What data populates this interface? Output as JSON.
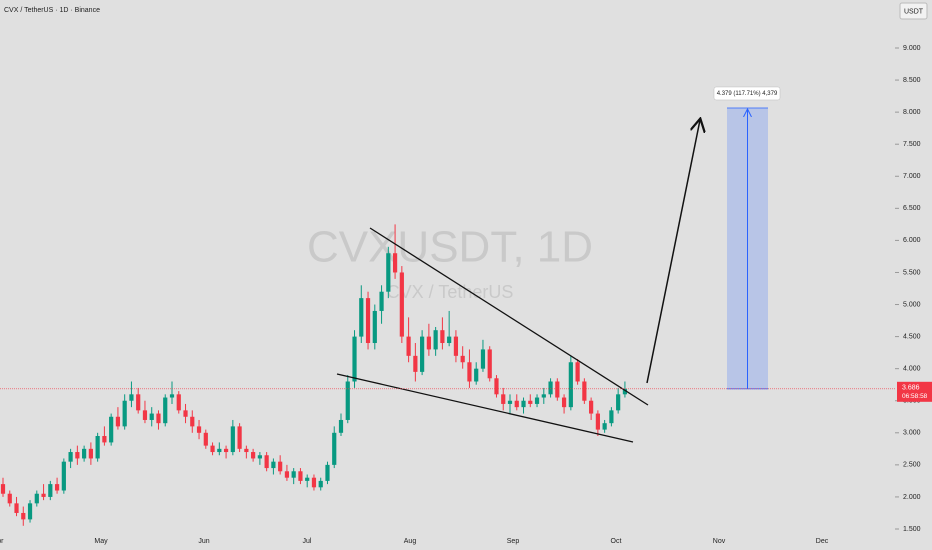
{
  "chart_data": {
    "type": "candlestick",
    "title": "CVX / TetherUS · 1D · Binance",
    "currency": "USDT",
    "watermark": "CVXUSDT, 1D",
    "watermark_sub": "CVX / TetherUS",
    "up_color": "#089981",
    "down_color": "#f23645",
    "ylim": [
      1.5,
      9
    ],
    "yticks": [
      {
        "value": 9,
        "label": "9.000"
      },
      {
        "value": 8.5,
        "label": "8.500"
      },
      {
        "value": 8,
        "label": "8.000"
      },
      {
        "value": 7.5,
        "label": "7.500"
      },
      {
        "value": 7,
        "label": "7.000"
      },
      {
        "value": 6.5,
        "label": "6.500"
      },
      {
        "value": 6,
        "label": "6.000"
      },
      {
        "value": 5.5,
        "label": "5.500"
      },
      {
        "value": 5,
        "label": "5.000"
      },
      {
        "value": 4.5,
        "label": "4.500"
      },
      {
        "value": 4,
        "label": "4.000"
      },
      {
        "value": 3.5,
        "label": "3.500"
      },
      {
        "value": 3,
        "label": "3.000"
      },
      {
        "value": 2.5,
        "label": "2.500"
      },
      {
        "value": 2,
        "label": "2.000"
      },
      {
        "value": 1.5,
        "label": "1.500"
      }
    ],
    "months": [
      "Apr",
      "May",
      "Jun",
      "Jul",
      "Aug",
      "Sep",
      "Oct",
      "Nov",
      "Dec"
    ],
    "last_price": 3.686,
    "countdown": "06:58:58",
    "measure": {
      "change": 4.379,
      "label": "4.379 (117.71%) 4,379"
    },
    "ohlc": [
      [
        2.2,
        2.3,
        2.0,
        2.05
      ],
      [
        2.05,
        2.1,
        1.85,
        1.9
      ],
      [
        1.9,
        2.0,
        1.7,
        1.75
      ],
      [
        1.75,
        1.85,
        1.55,
        1.65
      ],
      [
        1.65,
        1.95,
        1.6,
        1.9
      ],
      [
        1.9,
        2.1,
        1.85,
        2.05
      ],
      [
        2.05,
        2.2,
        1.95,
        2.0
      ],
      [
        2.0,
        2.25,
        1.95,
        2.2
      ],
      [
        2.2,
        2.3,
        2.05,
        2.1
      ],
      [
        2.1,
        2.6,
        2.05,
        2.55
      ],
      [
        2.55,
        2.75,
        2.45,
        2.7
      ],
      [
        2.7,
        2.8,
        2.5,
        2.6
      ],
      [
        2.6,
        2.8,
        2.55,
        2.75
      ],
      [
        2.75,
        2.85,
        2.5,
        2.6
      ],
      [
        2.6,
        3.0,
        2.55,
        2.95
      ],
      [
        2.95,
        3.1,
        2.8,
        2.85
      ],
      [
        2.85,
        3.3,
        2.8,
        3.25
      ],
      [
        3.25,
        3.4,
        3.05,
        3.1
      ],
      [
        3.1,
        3.6,
        3.05,
        3.5
      ],
      [
        3.5,
        3.8,
        3.4,
        3.6
      ],
      [
        3.6,
        3.7,
        3.3,
        3.35
      ],
      [
        3.35,
        3.5,
        3.15,
        3.2
      ],
      [
        3.2,
        3.4,
        3.1,
        3.3
      ],
      [
        3.3,
        3.35,
        3.05,
        3.15
      ],
      [
        3.15,
        3.6,
        3.1,
        3.55
      ],
      [
        3.55,
        3.8,
        3.45,
        3.6
      ],
      [
        3.6,
        3.65,
        3.3,
        3.35
      ],
      [
        3.35,
        3.45,
        3.15,
        3.25
      ],
      [
        3.25,
        3.35,
        3.0,
        3.1
      ],
      [
        3.1,
        3.2,
        2.9,
        3.0
      ],
      [
        3.0,
        3.05,
        2.75,
        2.8
      ],
      [
        2.8,
        2.85,
        2.65,
        2.7
      ],
      [
        2.7,
        2.85,
        2.65,
        2.75
      ],
      [
        2.75,
        2.8,
        2.6,
        2.7
      ],
      [
        2.7,
        3.2,
        2.65,
        3.1
      ],
      [
        3.1,
        3.15,
        2.7,
        2.75
      ],
      [
        2.75,
        2.8,
        2.6,
        2.7
      ],
      [
        2.7,
        2.75,
        2.55,
        2.6
      ],
      [
        2.6,
        2.7,
        2.5,
        2.65
      ],
      [
        2.65,
        2.7,
        2.4,
        2.45
      ],
      [
        2.45,
        2.6,
        2.35,
        2.55
      ],
      [
        2.55,
        2.65,
        2.35,
        2.4
      ],
      [
        2.4,
        2.5,
        2.25,
        2.3
      ],
      [
        2.3,
        2.45,
        2.2,
        2.4
      ],
      [
        2.4,
        2.45,
        2.2,
        2.25
      ],
      [
        2.25,
        2.35,
        2.15,
        2.3
      ],
      [
        2.3,
        2.35,
        2.1,
        2.15
      ],
      [
        2.15,
        2.3,
        2.1,
        2.25
      ],
      [
        2.25,
        2.55,
        2.2,
        2.5
      ],
      [
        2.5,
        3.1,
        2.45,
        3.0
      ],
      [
        3.0,
        3.3,
        2.95,
        3.2
      ],
      [
        3.2,
        3.9,
        3.15,
        3.8
      ],
      [
        3.8,
        4.6,
        3.7,
        4.5
      ],
      [
        4.5,
        5.3,
        4.4,
        5.1
      ],
      [
        5.1,
        5.2,
        4.3,
        4.4
      ],
      [
        4.4,
        5.0,
        4.3,
        4.9
      ],
      [
        4.9,
        5.3,
        4.7,
        5.2
      ],
      [
        5.2,
        5.9,
        5.1,
        5.8
      ],
      [
        5.8,
        6.25,
        5.4,
        5.5
      ],
      [
        5.5,
        5.6,
        4.4,
        4.5
      ],
      [
        4.5,
        4.8,
        4.1,
        4.2
      ],
      [
        4.2,
        4.4,
        3.8,
        3.95
      ],
      [
        3.95,
        4.6,
        3.9,
        4.5
      ],
      [
        4.5,
        4.7,
        4.2,
        4.3
      ],
      [
        4.3,
        4.65,
        4.2,
        4.6
      ],
      [
        4.6,
        4.8,
        4.3,
        4.4
      ],
      [
        4.4,
        4.9,
        4.35,
        4.5
      ],
      [
        4.5,
        4.6,
        4.1,
        4.2
      ],
      [
        4.2,
        4.35,
        4.0,
        4.1
      ],
      [
        4.1,
        4.3,
        3.7,
        3.8
      ],
      [
        3.8,
        4.1,
        3.75,
        4.0
      ],
      [
        4.0,
        4.45,
        3.95,
        4.3
      ],
      [
        4.3,
        4.35,
        3.8,
        3.85
      ],
      [
        3.85,
        3.9,
        3.55,
        3.6
      ],
      [
        3.6,
        3.7,
        3.35,
        3.45
      ],
      [
        3.45,
        3.6,
        3.3,
        3.5
      ],
      [
        3.5,
        3.6,
        3.35,
        3.4
      ],
      [
        3.4,
        3.55,
        3.3,
        3.5
      ],
      [
        3.5,
        3.6,
        3.4,
        3.45
      ],
      [
        3.45,
        3.6,
        3.4,
        3.55
      ],
      [
        3.55,
        3.7,
        3.45,
        3.6
      ],
      [
        3.6,
        3.85,
        3.55,
        3.8
      ],
      [
        3.8,
        3.85,
        3.5,
        3.55
      ],
      [
        3.55,
        3.6,
        3.3,
        3.4
      ],
      [
        3.4,
        4.2,
        3.35,
        4.1
      ],
      [
        4.1,
        4.15,
        3.75,
        3.8
      ],
      [
        3.8,
        3.85,
        3.45,
        3.5
      ],
      [
        3.5,
        3.55,
        3.2,
        3.3
      ],
      [
        3.3,
        3.35,
        2.95,
        3.05
      ],
      [
        3.05,
        3.2,
        3.0,
        3.15
      ],
      [
        3.15,
        3.4,
        3.1,
        3.35
      ],
      [
        3.35,
        3.7,
        3.3,
        3.6
      ],
      [
        3.6,
        3.8,
        3.55,
        3.686
      ]
    ]
  }
}
